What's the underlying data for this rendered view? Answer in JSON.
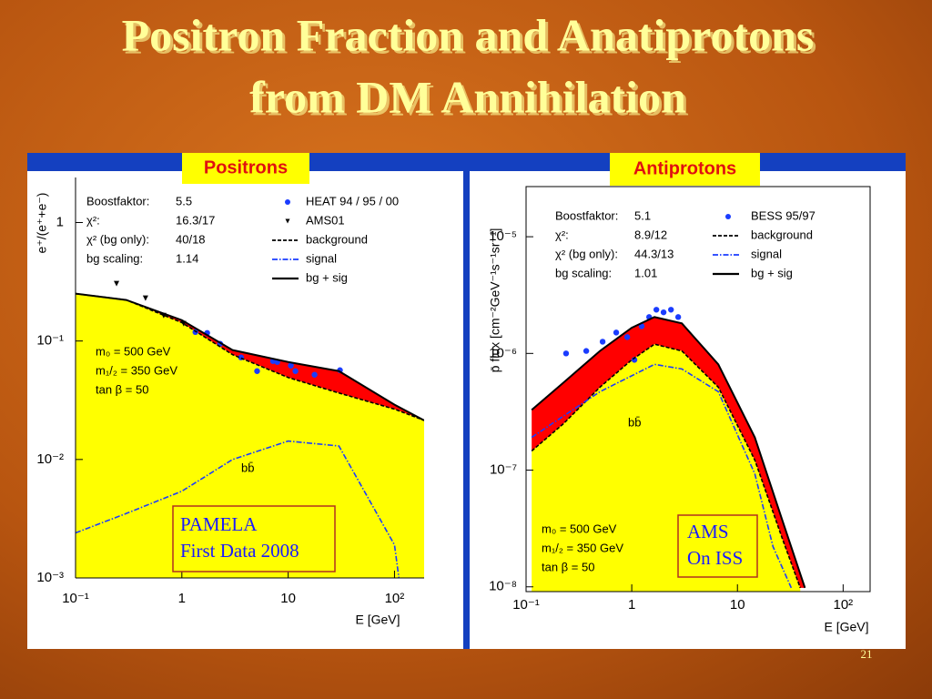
{
  "title": [
    "Positron Fraction and Anatiprotons",
    "from DM Annihilation"
  ],
  "page_number": "21",
  "callouts": [
    [
      "PAMELA",
      "First Data 2008"
    ],
    [
      "AMS",
      "On ISS"
    ]
  ],
  "chart_data": [
    {
      "type": "line",
      "title": "Positrons",
      "x_label": "E [GeV]",
      "y_label": "e⁺/(e⁺+e⁻)",
      "xscale": "log",
      "yscale": "log",
      "xlim": [
        0.1,
        190
      ],
      "ylim": [
        0.001,
        2.4
      ],
      "xticks": [
        {
          "value": 0.1,
          "label": "10⁻¹"
        },
        1,
        10,
        {
          "value": 100,
          "label": "10²"
        }
      ],
      "yticks": [
        {
          "value": 0.001,
          "label": "10⁻³"
        },
        {
          "value": 0.01,
          "label": "10⁻²"
        },
        {
          "value": 0.1,
          "label": "10⁻¹"
        },
        1
      ],
      "info": [
        {
          "label": "Boostfaktor:",
          "value": "5.5"
        },
        {
          "label": "χ²:",
          "value": "16.3/17"
        },
        {
          "label": "χ² (bg only):",
          "value": "40/18"
        },
        {
          "label": "bg scaling:",
          "value": "1.14"
        }
      ],
      "annotations": [
        "m₀ = 500 GeV",
        "m₁/₂ = 350 GeV",
        "tan β = 50",
        "bb̄"
      ],
      "series": [
        {
          "name": "HEAT 94 / 95 / 00",
          "color": "#1a3cff",
          "style": "points",
          "marker": "circle",
          "x": [
            1.34,
            1.73,
            2.29,
            3.6,
            5.1,
            7.2,
            7.9,
            10.6,
            11.7,
            17.7,
            30.7
          ],
          "values": [
            0.119,
            0.117,
            0.0948,
            0.0727,
            0.0557,
            0.0677,
            0.0665,
            0.062,
            0.0557,
            0.0519,
            0.0567
          ]
        },
        {
          "name": "AMS01",
          "color": "#000000",
          "style": "points",
          "marker": "triangle",
          "x": [
            0.243,
            0.455,
            0.675,
            1.04
          ],
          "values": [
            0.305,
            0.23,
            0.164,
            0.14
          ]
        },
        {
          "name": "background",
          "color": "#000000",
          "style": "dashed",
          "fill": "#ffff00",
          "x": [
            0.1,
            0.3,
            1,
            3,
            10,
            30,
            100,
            190
          ],
          "values": [
            0.251,
            0.222,
            0.143,
            0.0767,
            0.0492,
            0.0364,
            0.0266,
            0.0214
          ]
        },
        {
          "name": "signal",
          "color": "#1a3cff",
          "style": "dashdot",
          "x": [
            0.1,
            0.3,
            1,
            3,
            10,
            30,
            100,
            110
          ],
          "values": [
            0.0024,
            0.0035,
            0.0054,
            0.01,
            0.0143,
            0.013,
            0.0019,
            0.001
          ]
        },
        {
          "name": "bg + sig",
          "color": "#000000",
          "style": "solid",
          "fill": "#ff0000",
          "x": [
            0.1,
            0.3,
            1,
            3,
            10,
            30,
            100,
            190
          ],
          "values": [
            0.251,
            0.222,
            0.15,
            0.0838,
            0.0665,
            0.0557,
            0.029,
            0.0214
          ]
        }
      ]
    },
    {
      "type": "line",
      "title": "Antiprotons",
      "x_label": "E [GeV]",
      "y_label": "p̄ flux [cm⁻²GeV⁻¹s⁻¹sr⁻¹]",
      "xscale": "log",
      "yscale": "log",
      "xlim": [
        0.1,
        180
      ],
      "ylim": [
        9.1e-09,
        2.69e-05
      ],
      "xticks": [
        {
          "value": 0.1,
          "label": "10⁻¹"
        },
        1,
        10,
        {
          "value": 100,
          "label": "10²"
        }
      ],
      "yticks": [
        {
          "value": 1e-08,
          "label": "10⁻⁸"
        },
        {
          "value": 1e-07,
          "label": "10⁻⁷"
        },
        {
          "value": 1e-06,
          "label": "10⁻⁶"
        },
        {
          "value": 1e-05,
          "label": "10⁻⁵"
        }
      ],
      "info": [
        {
          "label": "Boostfaktor:",
          "value": "5.1"
        },
        {
          "label": "χ²:",
          "value": "8.9/12"
        },
        {
          "label": "χ² (bg only):",
          "value": "44.3/13"
        },
        {
          "label": "bg scaling:",
          "value": "1.01"
        }
      ],
      "annotations": [
        "m₀ = 500 GeV",
        "m₁/₂ = 350 GeV",
        "tan β = 50",
        "bb̄"
      ],
      "series": [
        {
          "name": "BESS 95/97",
          "color": "#1a3cff",
          "style": "points",
          "marker": "circle",
          "x": [
            0.239,
            0.371,
            0.53,
            0.713,
            0.906,
            1.06,
            1.24,
            1.46,
            1.71,
            2.0,
            2.35,
            2.75
          ],
          "values": [
            1e-06,
            1.05e-06,
            1.26e-06,
            1.51e-06,
            1.38e-06,
            8.81e-07,
            1.71e-06,
            2.05e-06,
            2.37e-06,
            2.25e-06,
            2.37e-06,
            2.05e-06
          ]
        },
        {
          "name": "background",
          "color": "#000000",
          "style": "dashed",
          "fill": "#ffff00",
          "x": [
            0.113,
            0.226,
            0.5,
            1,
            1.64,
            2.98,
            6.59,
            14.6,
            26.4,
            39.3
          ],
          "values": [
            1.46e-07,
            2.5e-07,
            5.14e-07,
            8.81e-07,
            1.2e-06,
            1.05e-06,
            5.14e-07,
            1.22e-07,
            2.64e-08,
            9.8e-09
          ]
        },
        {
          "name": "signal",
          "color": "#1a3cff",
          "style": "dashdot",
          "x": [
            0.113,
            0.5,
            1.64,
            2.98,
            6.59,
            14.6,
            21.7,
            32.3
          ],
          "values": [
            1.91e-07,
            4.7e-07,
            8.06e-07,
            7.36e-07,
            4.7e-07,
            9.3e-08,
            2.21e-08,
            9.8e-09
          ]
        },
        {
          "name": "bg + sig",
          "color": "#000000",
          "style": "solid",
          "fill": "#ff0000",
          "x": [
            0.113,
            0.226,
            0.5,
            1,
            1.64,
            2.98,
            6.59,
            14.6,
            26.4,
            43.5
          ],
          "values": [
            3.28e-07,
            5.62e-07,
            1.05e-06,
            1.66e-06,
            2.05e-06,
            1.81e-06,
            8.06e-07,
            1.91e-07,
            3.79e-08,
            9.8e-09
          ]
        }
      ]
    }
  ]
}
